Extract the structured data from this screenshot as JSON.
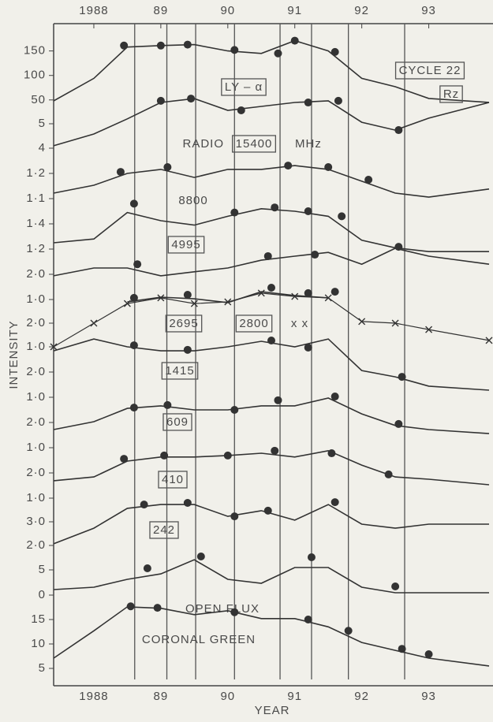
{
  "chart_data": {
    "type": "stacked-line",
    "x_label": "YEAR",
    "y_label": "INTENSITY",
    "color": "#333333",
    "xlim": [
      1987.4,
      1993.9
    ],
    "xticks": [
      1988,
      {
        "value": 1989,
        "label": "89"
      },
      {
        "value": 1990,
        "label": "90"
      },
      {
        "value": 1991,
        "label": "91"
      },
      {
        "value": 1992,
        "label": "92"
      },
      {
        "value": 1993,
        "label": "93"
      }
    ],
    "reference_lines_x": [
      1988.61,
      1989.09,
      1989.52,
      1990.1,
      1990.78,
      1991.25,
      1991.8,
      1992.64
    ],
    "x": [
      1987.4,
      1988,
      1988.5,
      1989,
      1989.5,
      1990,
      1990.5,
      1991,
      1991.5,
      1992,
      1992.5,
      1993,
      1993.9
    ],
    "series": [
      {
        "name": "Rz",
        "annotation": "CYCLE 22",
        "boxed": true,
        "ylim": [
          40,
          180
        ],
        "yticks": [
          150,
          100,
          50
        ],
        "values": [
          48,
          94,
          158,
          161,
          163,
          150,
          145,
          171,
          150,
          94,
          77,
          53,
          45
        ],
        "peak_x": [
          1988.45,
          1989.0,
          1989.4,
          1990.1,
          1990.75,
          1991.0,
          1991.6
        ],
        "peak_values": [
          161,
          161,
          163,
          152,
          145,
          171,
          148
        ]
      },
      {
        "name": "LY – α",
        "boxed": true,
        "ylim": [
          4,
          6.5
        ],
        "yticks": [
          5,
          4
        ],
        "values": [
          4.1,
          4.58,
          5.2,
          5.87,
          6.03,
          5.55,
          5.71,
          5.87,
          5.94,
          5.06,
          4.74,
          5.23,
          5.87
        ],
        "peak_x": [
          1989.0,
          1989.45,
          1990.2,
          1991.2,
          1991.65,
          1992.55
        ],
        "peak_values": [
          5.94,
          6.03,
          5.55,
          5.87,
          5.94,
          4.74
        ]
      },
      {
        "name": "15400",
        "prefix": "RADIO",
        "suffix": "MHz",
        "boxed": true,
        "ylim": [
          1.05,
          1.3
        ],
        "yticks": [
          {
            "value": 1.2,
            "label": "1·2"
          },
          {
            "value": 1.1,
            "label": "1·1"
          }
        ],
        "values": [
          1.122,
          1.153,
          1.2,
          1.216,
          1.184,
          1.216,
          1.216,
          1.231,
          1.216,
          1.169,
          1.122,
          1.106,
          1.138
        ],
        "peak_x": [
          1988.4,
          1989.1,
          1990.9,
          1991.5,
          1992.1
        ],
        "peak_values": [
          1.206,
          1.225,
          1.231,
          1.225,
          1.175
        ]
      },
      {
        "name": "8800",
        "boxed": false,
        "ylim": [
          1.1,
          1.6
        ],
        "yticks": [
          {
            "value": 1.4,
            "label": "1·4"
          },
          {
            "value": 1.2,
            "label": "1·2"
          }
        ],
        "values": [
          1.25,
          1.28,
          1.49,
          1.425,
          1.39,
          1.46,
          1.52,
          1.5,
          1.46,
          1.27,
          1.21,
          1.18,
          1.18
        ],
        "peak_x": [
          1988.6,
          1990.1,
          1990.7,
          1991.2,
          1991.7
        ],
        "peak_values": [
          1.56,
          1.49,
          1.53,
          1.5,
          1.46
        ]
      },
      {
        "name": "4995",
        "boxed": true,
        "ylim": [
          0.5,
          3.5
        ],
        "yticks": [
          {
            "value": 2,
            "label": "2·0"
          },
          {
            "value": 1,
            "label": "1·0"
          }
        ],
        "values": [
          1.94,
          2.25,
          2.25,
          1.94,
          2.1,
          2.25,
          2.56,
          2.72,
          2.87,
          2.4,
          3.03,
          2.72,
          2.4
        ],
        "peak_x": [
          1988.65,
          1990.6,
          1991.3,
          1992.55
        ],
        "peak_values": [
          2.4,
          2.72,
          2.78,
          3.09
        ]
      },
      {
        "name": "2695",
        "boxed": true,
        "ylim": [
          0.8,
          3.8
        ],
        "yticks": [
          {
            "value": 2,
            "label": "2·0"
          },
          {
            "value": 1,
            "label": "1·0"
          }
        ],
        "values": [
          null,
          null,
          2.9,
          3.1,
          3.03,
          2.87,
          3.33,
          3.17,
          3.07,
          null,
          null,
          null,
          null
        ],
        "peak_x": [
          1988.6,
          1989.4,
          1990.65,
          1991.2,
          1991.6
        ],
        "peak_values": [
          3.07,
          3.2,
          3.5,
          3.27,
          3.33
        ],
        "overlay": {
          "name": "2800",
          "marker_label": "x x",
          "values": [
            1.0,
            2.0,
            2.83,
            3.07,
            2.83,
            2.9,
            3.27,
            3.13,
            3.07,
            2.07,
            2.0,
            1.73,
            1.27
          ]
        }
      },
      {
        "name": "1415",
        "boxed": true,
        "ylim": [
          1,
          3.5
        ],
        "yticks": [
          {
            "value": 2,
            "label": "2·0"
          },
          {
            "value": 1,
            "label": "1·0"
          }
        ],
        "values": [
          2.84,
          3.31,
          3.0,
          2.84,
          2.84,
          3.0,
          3.22,
          3.0,
          3.31,
          2.06,
          1.81,
          1.44,
          1.28
        ],
        "peak_x": [
          1988.6,
          1989.4,
          1990.65,
          1991.2,
          1992.6
        ],
        "peak_values": [
          3.06,
          2.88,
          3.25,
          2.97,
          1.81
        ]
      },
      {
        "name": "609",
        "boxed": true,
        "ylim": [
          1,
          3.5
        ],
        "yticks": [
          {
            "value": 2,
            "label": "2·0"
          },
          {
            "value": 1,
            "label": "1·0"
          }
        ],
        "values": [
          1.72,
          2.03,
          2.56,
          2.66,
          2.5,
          2.5,
          2.66,
          2.66,
          2.97,
          2.34,
          1.88,
          1.72,
          1.56
        ],
        "peak_x": [
          1988.6,
          1989.1,
          1990.1,
          1990.75,
          1991.6,
          1992.55
        ],
        "peak_values": [
          2.59,
          2.69,
          2.5,
          2.88,
          3.03,
          1.94
        ]
      },
      {
        "name": "410",
        "boxed": true,
        "ylim": [
          1,
          3.5
        ],
        "yticks": [
          {
            "value": 2,
            "label": "2·0"
          },
          {
            "value": 1,
            "label": "1·0"
          }
        ],
        "values": [
          1.69,
          1.84,
          2.47,
          2.63,
          2.63,
          2.69,
          2.78,
          2.63,
          2.88,
          2.31,
          1.84,
          1.75,
          1.53
        ],
        "peak_x": [
          1988.45,
          1989.05,
          1990.0,
          1990.7,
          1991.55,
          1992.4
        ],
        "peak_values": [
          2.56,
          2.69,
          2.69,
          2.88,
          2.78,
          1.94
        ]
      },
      {
        "name": "242",
        "boxed": true,
        "ylim": [
          2,
          4
        ],
        "yticks": [
          {
            "value": 3,
            "label": "3·0"
          },
          {
            "value": 2,
            "label": "2·0"
          }
        ],
        "values": [
          2.07,
          2.73,
          3.57,
          3.73,
          3.73,
          3.23,
          3.47,
          3.07,
          3.73,
          2.9,
          2.73,
          2.9,
          2.9
        ],
        "peak_x": [
          1988.75,
          1989.4,
          1990.1,
          1990.6,
          1991.6
        ],
        "peak_values": [
          3.73,
          3.8,
          3.23,
          3.47,
          3.83
        ]
      },
      {
        "name": "OPEN FLUX",
        "boxed": false,
        "ylim": [
          0,
          8
        ],
        "yticks": [
          5,
          0
        ],
        "values": [
          1.1,
          1.56,
          3.13,
          4.2,
          7.0,
          3.13,
          2.34,
          5.47,
          5.47,
          1.56,
          0.47,
          0.47,
          0.47
        ],
        "peak_x": [
          1988.8,
          1989.6,
          1991.25,
          1992.5
        ],
        "peak_values": [
          5.31,
          7.66,
          7.5,
          1.72
        ]
      },
      {
        "name": "CORONAL GREEN",
        "boxed": false,
        "ylim": [
          5,
          18
        ],
        "yticks": [
          15,
          10,
          5
        ],
        "values": [
          7.1,
          12.7,
          17.6,
          17.3,
          16.0,
          16.8,
          15.2,
          15.2,
          13.5,
          10.3,
          8.7,
          7.1,
          5.5
        ],
        "peak_x": [
          1988.55,
          1988.95,
          1990.1,
          1991.2,
          1991.8,
          1992.6,
          1993.0
        ],
        "peak_values": [
          17.7,
          17.4,
          16.5,
          15,
          12.7,
          9.0,
          7.9
        ]
      }
    ]
  }
}
